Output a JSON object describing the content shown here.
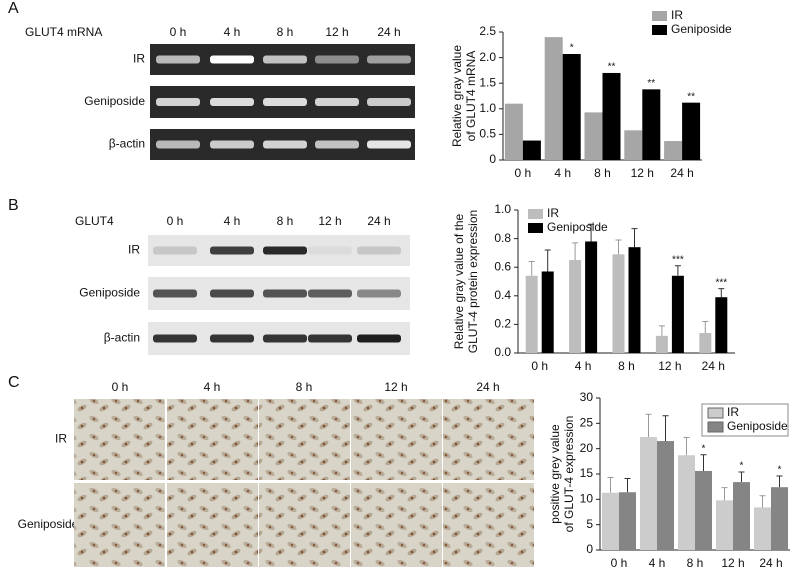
{
  "figure": {
    "panels": [
      {
        "label": "A",
        "blot_title": "GLUT4 mRNA",
        "columns": [
          "0 h",
          "4 h",
          "8 h",
          "12 h",
          "24 h"
        ],
        "rows": [
          "IR",
          "Geniposide",
          "β-actin"
        ]
      },
      {
        "label": "B",
        "blot_title": "GLUT4",
        "columns": [
          "0 h",
          "4 h",
          "8 h",
          "12 h",
          "24 h"
        ],
        "rows": [
          "IR",
          "Geniposide",
          "β-actin"
        ]
      },
      {
        "label": "C",
        "columns": [
          "0 h",
          "4 h",
          "8 h",
          "12 h",
          "24 h"
        ],
        "rows": [
          "IR",
          "Geniposide"
        ]
      }
    ]
  },
  "chart_data": [
    {
      "type": "bar",
      "ylabel": [
        "Relative gray value",
        "of GLUT4 mRNA"
      ],
      "categories": [
        "0 h",
        "4 h",
        "8 h",
        "12 h",
        "24 h"
      ],
      "ylim": [
        0,
        2.5
      ],
      "yticks": [
        0,
        0.5,
        {
          "value": 1,
          "label": "1.0"
        },
        1.5,
        {
          "value": 2,
          "label": "2.0"
        },
        2.5
      ],
      "series": [
        {
          "name": "IR",
          "color": "#a6a6a6",
          "values": [
            1.1,
            2.4,
            0.93,
            0.58,
            0.37
          ]
        },
        {
          "name": "Geniposide",
          "color": "#000000",
          "values": [
            0.38,
            2.07,
            1.7,
            1.38,
            1.12
          ],
          "significance": [
            null,
            "*",
            "**",
            "**",
            "**"
          ]
        }
      ]
    },
    {
      "type": "bar",
      "ylabel": [
        "Relative gray value of the",
        "GLUT-4 protein expression"
      ],
      "categories": [
        "0 h",
        "4 h",
        "8 h",
        "12 h",
        "24 h"
      ],
      "ylim": [
        0,
        1
      ],
      "yticks": [
        {
          "value": 0,
          "label": "0.0"
        },
        0.2,
        0.4,
        0.6,
        0.8,
        {
          "value": 1,
          "label": "1.0"
        }
      ],
      "series": [
        {
          "name": "IR",
          "color": "#bdbdbd",
          "values": [
            0.54,
            0.65,
            0.69,
            0.12,
            0.14
          ],
          "errors": [
            0.1,
            0.12,
            0.1,
            0.07,
            0.08
          ]
        },
        {
          "name": "Geniposide",
          "color": "#000000",
          "values": [
            0.57,
            0.78,
            0.74,
            0.54,
            0.39
          ],
          "errors": [
            0.15,
            0.12,
            0.13,
            0.07,
            0.06
          ],
          "significance": [
            null,
            null,
            null,
            "***",
            "***"
          ]
        }
      ]
    },
    {
      "type": "bar",
      "ylabel": [
        "positive grey value",
        "of GLUT-4 expression"
      ],
      "categories": [
        "0 h",
        "4 h",
        "8 h",
        "12 h",
        "24 h"
      ],
      "ylim": [
        0,
        30
      ],
      "yticks": [
        0,
        5,
        10,
        15,
        20,
        25,
        30
      ],
      "series": [
        {
          "name": "IR",
          "color": "#cccccc",
          "values": [
            11.3,
            22.3,
            18.7,
            9.8,
            8.4
          ],
          "errors": [
            3,
            4.5,
            3.5,
            2.5,
            2.3
          ]
        },
        {
          "name": "Geniposide",
          "color": "#858585",
          "values": [
            11.4,
            21.5,
            15.6,
            13.4,
            12.4
          ],
          "errors": [
            2.7,
            5,
            3.2,
            2,
            2.2
          ],
          "significance": [
            null,
            null,
            "*",
            "*",
            "*"
          ]
        }
      ]
    }
  ]
}
